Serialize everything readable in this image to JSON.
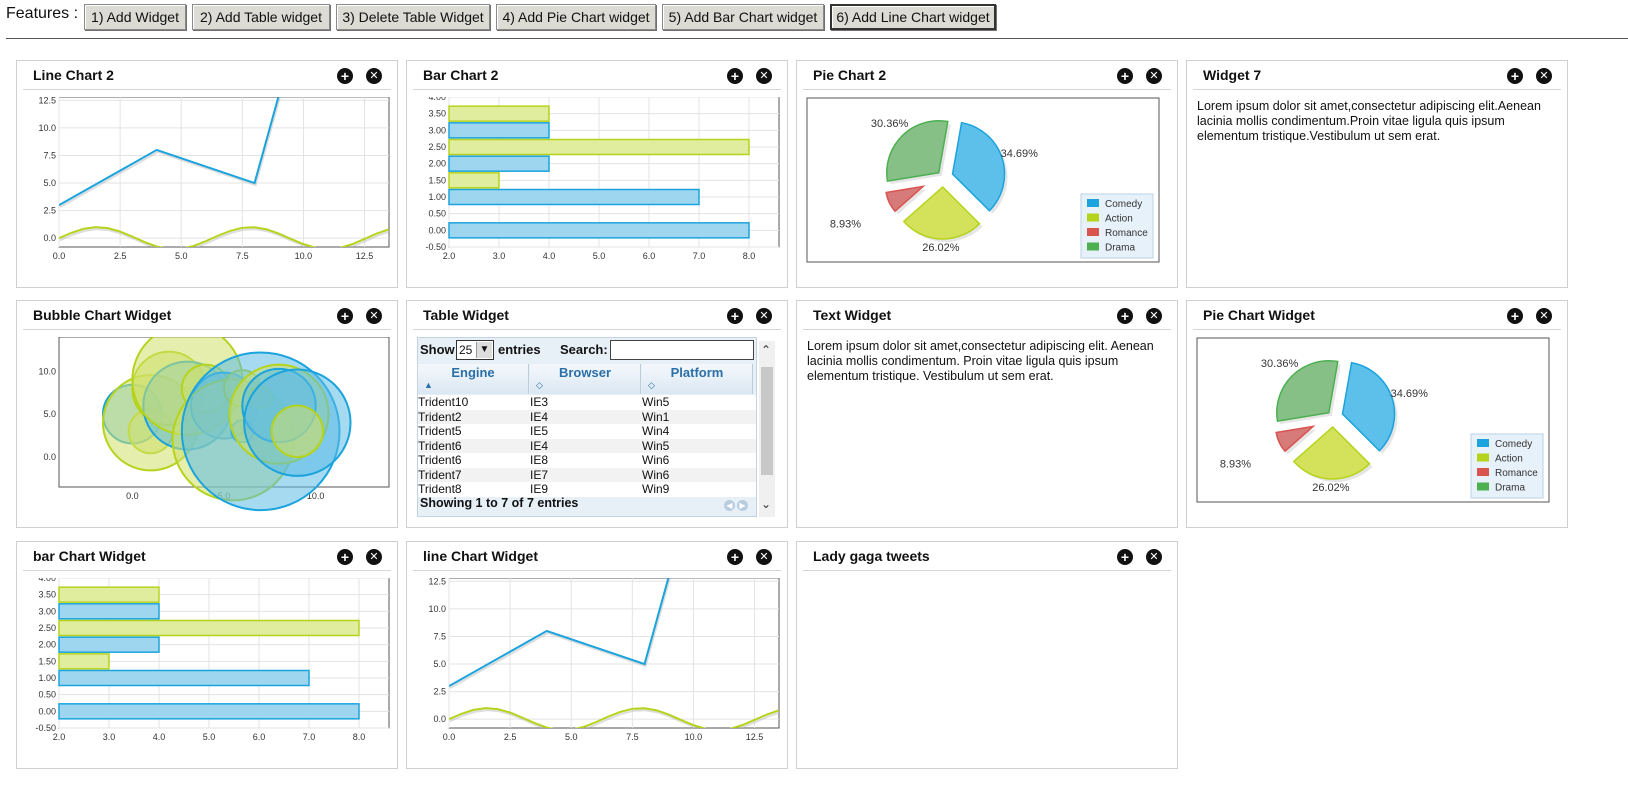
{
  "toolbar": {
    "features_label": "Features :",
    "buttons": [
      "1) Add Widget",
      "2) Add Table widget",
      "3) Delete Table Widget",
      "4) Add Pie Chart widget",
      "5) Add Bar Chart widget",
      "6) Add Line Chart widget"
    ]
  },
  "widget_controls": {
    "add_icon": "plus-circle-icon",
    "close_icon": "close-circle-icon"
  },
  "widgets": {
    "line_chart_2": {
      "title": "Line Chart 2"
    },
    "bar_chart_2": {
      "title": "Bar Chart 2"
    },
    "pie_chart_2": {
      "title": "Pie Chart 2"
    },
    "widget_7": {
      "title": "Widget 7",
      "text": "Lorem ipsum dolor sit amet,consectetur adipiscing elit.Aenean lacinia mollis condimentum.Proin vitae ligula quis ipsum elementum tristique.Vestibulum ut sem erat."
    },
    "bubble_chart": {
      "title": "Bubble Chart Widget"
    },
    "table_widget": {
      "title": "Table Widget",
      "show_label": "Show",
      "length_value": "25",
      "entries_label": "entries",
      "search_label": "Search:",
      "search_value": "",
      "columns": [
        "Engine",
        "Browser",
        "Platform"
      ],
      "rows": [
        [
          "Trident10",
          "IE3",
          "Win5"
        ],
        [
          "Trident2",
          "IE4",
          "Win1"
        ],
        [
          "Trident5",
          "IE5",
          "Win4"
        ],
        [
          "Trident6",
          "IE4",
          "Win5"
        ],
        [
          "Trident6",
          "IE8",
          "Win6"
        ],
        [
          "Trident7",
          "IE7",
          "Win6"
        ],
        [
          "Trident8",
          "IE9",
          "Win9"
        ]
      ],
      "info": "Showing 1 to 7 of 7 entries"
    },
    "text_widget": {
      "title": "Text Widget",
      "text": "Lorem ipsum dolor sit amet,consectetur adipiscing elit. Aenean lacinia mollis condimentum. Proin vitae ligula quis ipsum elementum tristique. Vestibulum ut sem erat."
    },
    "pie_chart_widget": {
      "title": "Pie Chart Widget"
    },
    "bar_chart_widget": {
      "title": "bar Chart Widget"
    },
    "line_chart_widget": {
      "title": "line Chart Widget"
    },
    "lady_gaga": {
      "title": "Lady gaga tweets"
    }
  },
  "colors": {
    "blue": "#1ba3dd",
    "green": "#b6d31c",
    "red": "#d9534f",
    "drama": "#4caf50"
  },
  "chart_data": [
    {
      "id": "line_chart_2",
      "type": "line",
      "xlim": [
        0,
        13.5
      ],
      "ylim": [
        -0.8,
        12.8
      ],
      "xticks": [
        "0.0",
        "2.5",
        "5.0",
        "7.5",
        "10.0",
        "12.5"
      ],
      "yticks": [
        "0.0",
        "2.5",
        "5.0",
        "7.5",
        "10.0",
        "12.5"
      ],
      "series": [
        {
          "color": "#1ba3dd",
          "x": [
            0,
            4,
            8,
            9,
            13.5
          ],
          "y": [
            3,
            8,
            5,
            13,
            13
          ]
        },
        {
          "color": "#b6d31c",
          "x": [
            0,
            0.5,
            1,
            1.5,
            2,
            2.5,
            3,
            3.5,
            4,
            4.5,
            5,
            5.5,
            6,
            6.5,
            7,
            7.5,
            8,
            8.5,
            9,
            9.5,
            10,
            10.5,
            11,
            11.5,
            12,
            12.5,
            13,
            13.5
          ],
          "y": [
            0,
            0.48,
            0.84,
            1.0,
            0.91,
            0.6,
            0.14,
            -0.35,
            -0.76,
            -0.98,
            -0.96,
            -0.71,
            -0.28,
            0.22,
            0.66,
            0.94,
            0.99,
            0.8,
            0.41,
            -0.08,
            -0.54,
            -0.88,
            -1.0,
            -0.88,
            -0.54,
            -0.07,
            0.42,
            0.8
          ]
        }
      ]
    },
    {
      "id": "bar_chart_2",
      "type": "bar",
      "orientation": "horizontal",
      "xlim": [
        2,
        8.6
      ],
      "ylim": [
        -0.5,
        4.0
      ],
      "xticks": [
        "2.0",
        "3.0",
        "4.0",
        "5.0",
        "6.0",
        "7.0",
        "8.0"
      ],
      "yticks": [
        "4.00",
        "3.50",
        "3.00",
        "2.50",
        "2.00",
        "1.50",
        "1.00",
        "0.50",
        "0.00",
        "-0.50"
      ],
      "bars": [
        {
          "y": 0,
          "value": 8,
          "color": "#1ba3dd"
        },
        {
          "y": 1,
          "value": 7,
          "color": "#1ba3dd"
        },
        {
          "y": 1.5,
          "value": 3,
          "color": "#b6d31c"
        },
        {
          "y": 2,
          "value": 4,
          "color": "#1ba3dd"
        },
        {
          "y": 2.5,
          "value": 8,
          "color": "#b6d31c"
        },
        {
          "y": 3,
          "value": 4,
          "color": "#1ba3dd"
        },
        {
          "y": 3.5,
          "value": 4,
          "color": "#b6d31c"
        }
      ]
    },
    {
      "id": "pie_chart_2",
      "type": "pie",
      "slices": [
        {
          "name": "Comedy",
          "value": 34.69,
          "label": "34.69%",
          "color": "#1ba3dd"
        },
        {
          "name": "Action",
          "value": 26.02,
          "label": "26.02%",
          "color": "#b6d31c"
        },
        {
          "name": "Romance",
          "value": 8.93,
          "label": "8.93%",
          "color": "#d9534f"
        },
        {
          "name": "Drama",
          "value": 30.36,
          "label": "30.36%",
          "color": "#4caf50"
        }
      ],
      "legend": "bottom-right"
    },
    {
      "id": "bubble_chart",
      "type": "scatter",
      "xlim": [
        -4,
        14
      ],
      "ylim": [
        -3.5,
        14
      ],
      "xticks": [
        "0.0",
        "5.0",
        "10.0"
      ],
      "yticks": [
        "0.0",
        "5.0",
        "10.0"
      ],
      "bubbles": [
        {
          "x": 0,
          "y": 5,
          "r": 1.6,
          "color": "#1ba3dd"
        },
        {
          "x": 1,
          "y": 3,
          "r": 1.2,
          "color": "#b6d31c"
        },
        {
          "x": 1,
          "y": 4,
          "r": 2.6,
          "color": "#b6d31c"
        },
        {
          "x": 2,
          "y": 8,
          "r": 2.0,
          "color": "#b6d31c"
        },
        {
          "x": 3,
          "y": 6,
          "r": 2.4,
          "color": "#1ba3dd"
        },
        {
          "x": 3,
          "y": 9,
          "r": 3.0,
          "color": "#b6d31c"
        },
        {
          "x": 4,
          "y": 8,
          "r": 1.3,
          "color": "#b6d31c"
        },
        {
          "x": 5,
          "y": 6,
          "r": 1.8,
          "color": "#1ba3dd"
        },
        {
          "x": 5.5,
          "y": 2,
          "r": 3.3,
          "color": "#b6d31c"
        },
        {
          "x": 6,
          "y": 3,
          "r": 0.6,
          "color": "#1ba3dd"
        },
        {
          "x": 6,
          "y": 8,
          "r": 1.0,
          "color": "#b6d31c"
        },
        {
          "x": 7,
          "y": 3,
          "r": 4.3,
          "color": "#1ba3dd"
        },
        {
          "x": 7,
          "y": 7,
          "r": 0.6,
          "color": "#b6d31c"
        },
        {
          "x": 8,
          "y": 5,
          "r": 2.7,
          "color": "#b6d31c"
        },
        {
          "x": 8,
          "y": 6,
          "r": 2.0,
          "color": "#1ba3dd"
        },
        {
          "x": 9,
          "y": 4,
          "r": 2.9,
          "color": "#1ba3dd"
        },
        {
          "x": 9,
          "y": 3,
          "r": 1.4,
          "color": "#b6d31c"
        }
      ]
    },
    {
      "id": "pie_chart_widget",
      "type": "pie",
      "slices": [
        {
          "name": "Comedy",
          "value": 34.69,
          "label": "34.69%",
          "color": "#1ba3dd"
        },
        {
          "name": "Action",
          "value": 26.02,
          "label": "26.02%",
          "color": "#b6d31c"
        },
        {
          "name": "Romance",
          "value": 8.93,
          "label": "8.93%",
          "color": "#d9534f"
        },
        {
          "name": "Drama",
          "value": 30.36,
          "label": "30.36%",
          "color": "#4caf50"
        }
      ],
      "legend": "bottom-right"
    },
    {
      "id": "bar_chart_widget",
      "type": "bar",
      "orientation": "horizontal",
      "xlim": [
        2,
        8.6
      ],
      "ylim": [
        -0.5,
        4.0
      ],
      "xticks": [
        "2.0",
        "3.0",
        "4.0",
        "5.0",
        "6.0",
        "7.0",
        "8.0"
      ],
      "yticks": [
        "4.00",
        "3.50",
        "3.00",
        "2.50",
        "2.00",
        "1.50",
        "1.00",
        "0.50",
        "0.00",
        "-0.50"
      ],
      "bars": [
        {
          "y": 0,
          "value": 8,
          "color": "#1ba3dd"
        },
        {
          "y": 1,
          "value": 7,
          "color": "#1ba3dd"
        },
        {
          "y": 1.5,
          "value": 3,
          "color": "#b6d31c"
        },
        {
          "y": 2,
          "value": 4,
          "color": "#1ba3dd"
        },
        {
          "y": 2.5,
          "value": 8,
          "color": "#b6d31c"
        },
        {
          "y": 3,
          "value": 4,
          "color": "#1ba3dd"
        },
        {
          "y": 3.5,
          "value": 4,
          "color": "#b6d31c"
        }
      ]
    },
    {
      "id": "line_chart_widget",
      "type": "line",
      "xlim": [
        0,
        13.5
      ],
      "ylim": [
        -0.8,
        12.8
      ],
      "xticks": [
        "0.0",
        "2.5",
        "5.0",
        "7.5",
        "10.0",
        "12.5"
      ],
      "yticks": [
        "0.0",
        "2.5",
        "5.0",
        "7.5",
        "10.0",
        "12.5"
      ],
      "series": [
        {
          "color": "#1ba3dd",
          "x": [
            0,
            4,
            8,
            9,
            13.5
          ],
          "y": [
            3,
            8,
            5,
            13,
            13
          ]
        },
        {
          "color": "#b6d31c",
          "x": [
            0,
            0.5,
            1,
            1.5,
            2,
            2.5,
            3,
            3.5,
            4,
            4.5,
            5,
            5.5,
            6,
            6.5,
            7,
            7.5,
            8,
            8.5,
            9,
            9.5,
            10,
            10.5,
            11,
            11.5,
            12,
            12.5,
            13,
            13.5
          ],
          "y": [
            0,
            0.48,
            0.84,
            1.0,
            0.91,
            0.6,
            0.14,
            -0.35,
            -0.76,
            -0.98,
            -0.96,
            -0.71,
            -0.28,
            0.22,
            0.66,
            0.94,
            0.99,
            0.8,
            0.41,
            -0.08,
            -0.54,
            -0.88,
            -1.0,
            -0.88,
            -0.54,
            -0.07,
            0.42,
            0.8
          ]
        }
      ]
    }
  ]
}
